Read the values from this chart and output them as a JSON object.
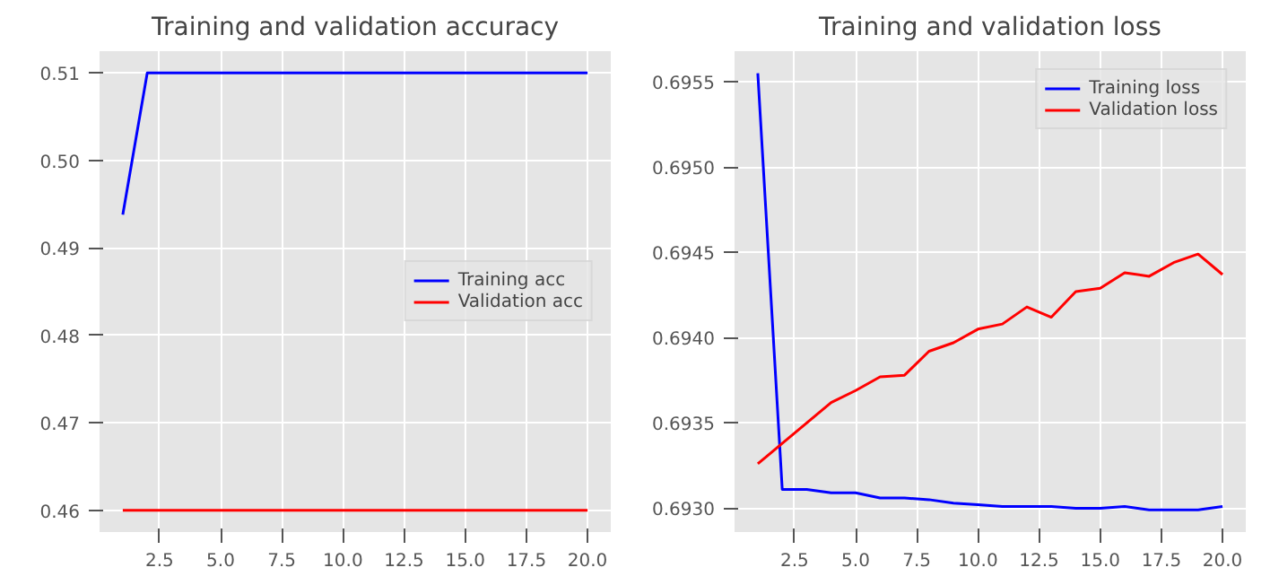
{
  "chart_data": [
    {
      "type": "line",
      "title": "Training and validation accuracy",
      "x": [
        1,
        2,
        3,
        4,
        5,
        6,
        7,
        8,
        9,
        10,
        11,
        12,
        13,
        14,
        15,
        16,
        17,
        18,
        19,
        20
      ],
      "series": [
        {
          "name": "Training acc",
          "color": "#0000ff",
          "values": [
            0.4938,
            0.51,
            0.51,
            0.51,
            0.51,
            0.51,
            0.51,
            0.51,
            0.51,
            0.51,
            0.51,
            0.51,
            0.51,
            0.51,
            0.51,
            0.51,
            0.51,
            0.51,
            0.51,
            0.51
          ]
        },
        {
          "name": "Validation acc",
          "color": "#ff0000",
          "values": [
            0.46,
            0.46,
            0.46,
            0.46,
            0.46,
            0.46,
            0.46,
            0.46,
            0.46,
            0.46,
            0.46,
            0.46,
            0.46,
            0.46,
            0.46,
            0.46,
            0.46,
            0.46,
            0.46,
            0.46
          ]
        }
      ],
      "xlim": [
        0.05,
        20.95
      ],
      "xticks": [
        {
          "value": 2.5,
          "label": "2.5"
        },
        {
          "value": 5,
          "label": "5.0"
        },
        {
          "value": 7.5,
          "label": "7.5"
        },
        {
          "value": 10,
          "label": "10.0"
        },
        {
          "value": 12.5,
          "label": "12.5"
        },
        {
          "value": 15,
          "label": "15.0"
        },
        {
          "value": 17.5,
          "label": "17.5"
        },
        {
          "value": 20,
          "label": "20.0"
        }
      ],
      "ylim": [
        0.4575,
        0.5125
      ],
      "yticks": [
        {
          "value": 0.46,
          "label": "0.46"
        },
        {
          "value": 0.47,
          "label": "0.47"
        },
        {
          "value": 0.48,
          "label": "0.48"
        },
        {
          "value": 0.49,
          "label": "0.49"
        },
        {
          "value": 0.5,
          "label": "0.50"
        },
        {
          "value": 0.51,
          "label": "0.51"
        }
      ],
      "grid": true,
      "legend": "right"
    },
    {
      "type": "line",
      "title": "Training and validation loss",
      "x": [
        1,
        2,
        3,
        4,
        5,
        6,
        7,
        8,
        9,
        10,
        11,
        12,
        13,
        14,
        15,
        16,
        17,
        18,
        19,
        20
      ],
      "series": [
        {
          "name": "Training loss",
          "color": "#0000ff",
          "values": [
            0.69555,
            0.69311,
            0.69311,
            0.69309,
            0.69309,
            0.69306,
            0.69306,
            0.69305,
            0.69303,
            0.69302,
            0.69301,
            0.69301,
            0.69301,
            0.693,
            0.693,
            0.69301,
            0.69299,
            0.69299,
            0.69299,
            0.69301
          ]
        },
        {
          "name": "Validation loss",
          "color": "#ff0000",
          "values": [
            0.69326,
            0.69338,
            0.6935,
            0.69362,
            0.69369,
            0.69377,
            0.69378,
            0.69392,
            0.69397,
            0.69405,
            0.69408,
            0.69418,
            0.69412,
            0.69427,
            0.69429,
            0.69438,
            0.69436,
            0.69444,
            0.69449,
            0.69437
          ]
        }
      ],
      "xlim": [
        0.05,
        20.95
      ],
      "xticks": [
        {
          "value": 2.5,
          "label": "2.5"
        },
        {
          "value": 5,
          "label": "5.0"
        },
        {
          "value": 7.5,
          "label": "7.5"
        },
        {
          "value": 10,
          "label": "10.0"
        },
        {
          "value": 12.5,
          "label": "12.5"
        },
        {
          "value": 15,
          "label": "15.0"
        },
        {
          "value": 17.5,
          "label": "17.5"
        },
        {
          "value": 20,
          "label": "20.0"
        }
      ],
      "ylim": [
        0.69286,
        0.69568
      ],
      "yticks": [
        {
          "value": 0.693,
          "label": "0.6930"
        },
        {
          "value": 0.6935,
          "label": "0.6935"
        },
        {
          "value": 0.694,
          "label": "0.6940"
        },
        {
          "value": 0.6945,
          "label": "0.6945"
        },
        {
          "value": 0.695,
          "label": "0.6950"
        },
        {
          "value": 0.6955,
          "label": "0.6955"
        }
      ],
      "grid": true,
      "legend": "top right"
    }
  ]
}
